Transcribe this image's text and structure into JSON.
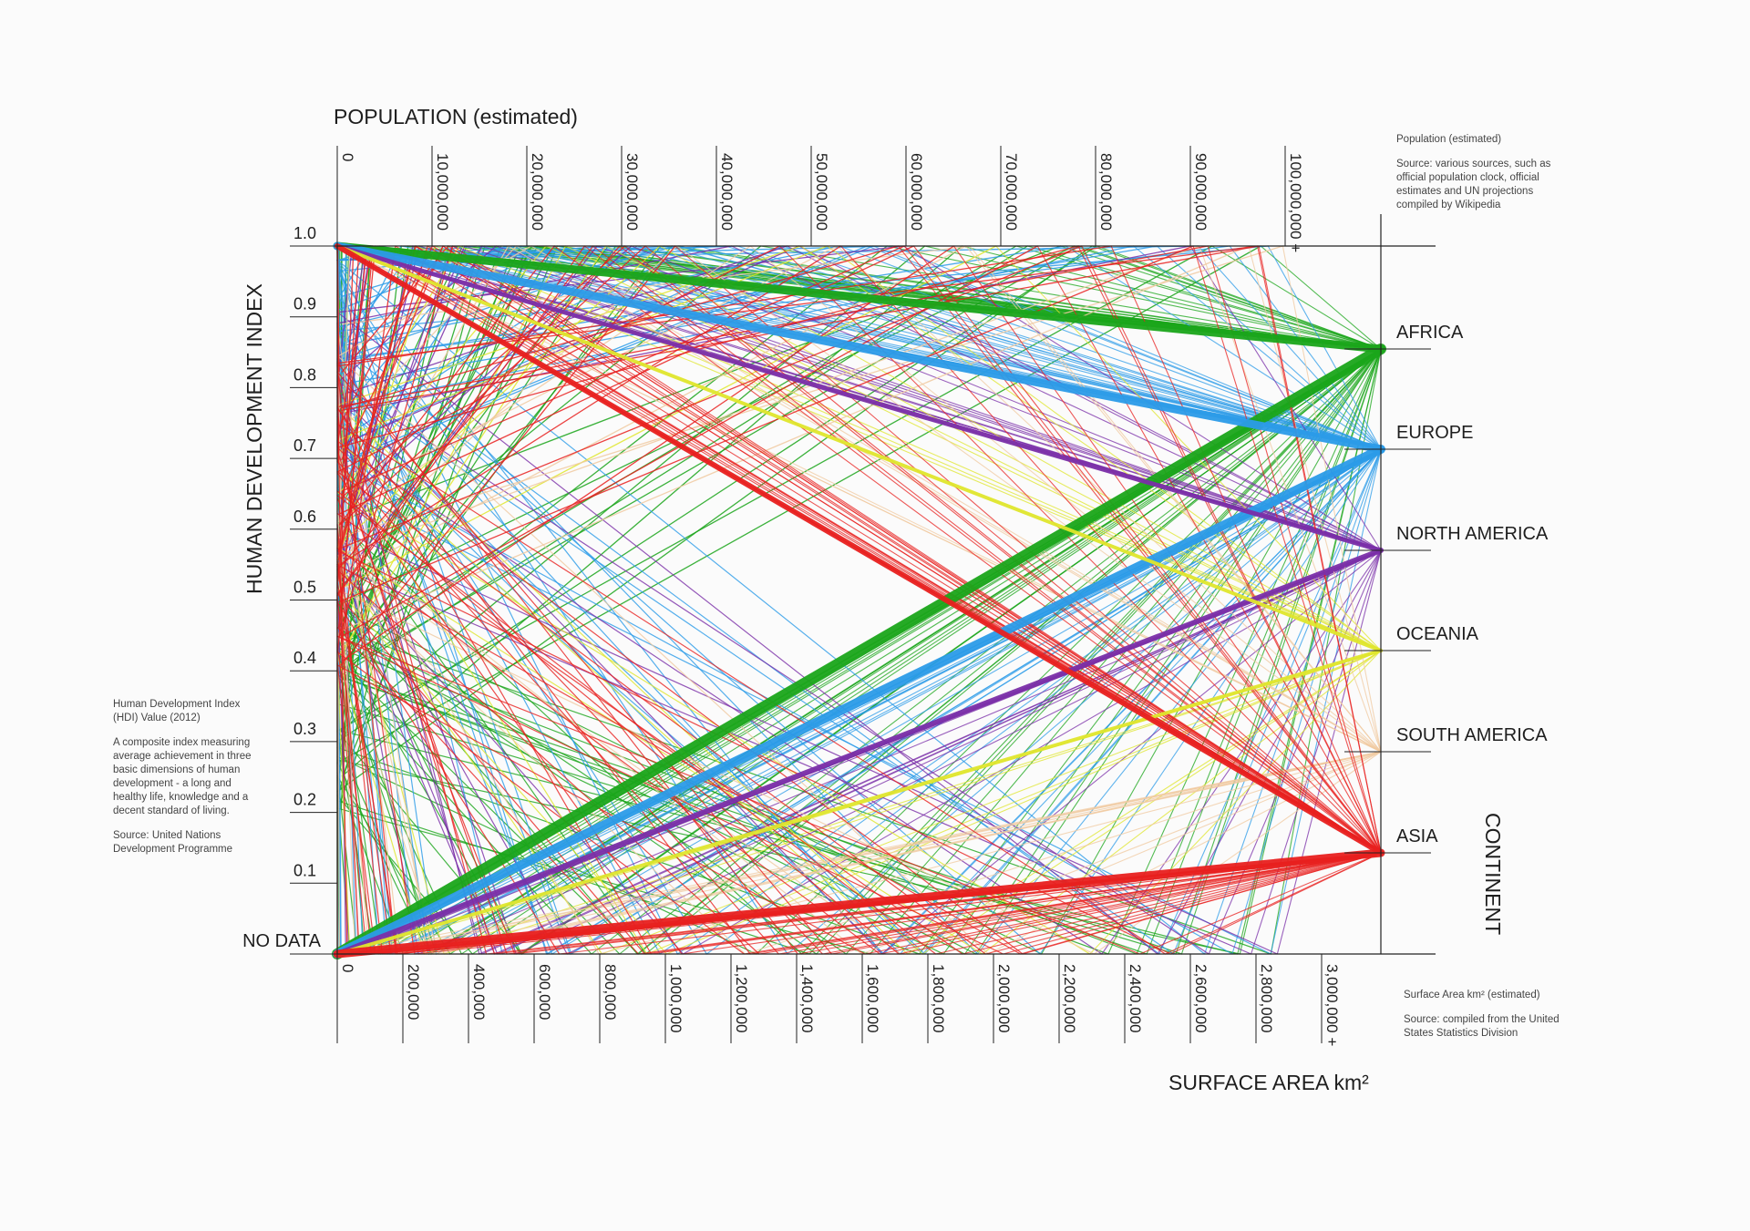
{
  "chart_data": {
    "type": "parallel-coordinates",
    "axes": [
      {
        "name": "POPULATION (estimated)",
        "scale": "linear",
        "ticks": [
          "0",
          "10,000,000",
          "20,000,000",
          "30,000,000",
          "40,000,000",
          "50,000,000",
          "60,000,000",
          "70,000,000",
          "80,000,000",
          "90,000,000",
          "100,000,000 +"
        ],
        "range": [
          0,
          100000000
        ]
      },
      {
        "name": "HUMAN DEVELOPMENT INDEX",
        "scale": "linear",
        "ticks": [
          "NO DATA",
          "0.1",
          "0.2",
          "0.3",
          "0.4",
          "0.5",
          "0.6",
          "0.7",
          "0.8",
          "0.9",
          "1.0"
        ],
        "range": [
          0,
          1
        ]
      },
      {
        "name": "SURFACE AREA km²",
        "scale": "linear",
        "ticks": [
          "0",
          "200,000",
          "400,000",
          "600,000",
          "800,000",
          "1,000,000",
          "1,200,000",
          "1,400,000",
          "1,600,000",
          "1,800,000",
          "2,000,000",
          "2,200,000",
          "2,400,000",
          "2,600,000",
          "2,800,000",
          "3,000,000 +"
        ],
        "range": [
          0,
          3000000
        ]
      },
      {
        "name": "CONTINENT",
        "scale": "categorical",
        "categories": [
          "AFRICA",
          "EUROPE",
          "NORTH AMERICA",
          "OCEANIA",
          "SOUTH AMERICA",
          "ASIA"
        ]
      }
    ],
    "series": [
      {
        "name": "AFRICA",
        "color": "#1aa51a"
      },
      {
        "name": "EUROPE",
        "color": "#2b9be8"
      },
      {
        "name": "NORTH AMERICA",
        "color": "#7a2ea8"
      },
      {
        "name": "OCEANIA",
        "color": "#dfe62c"
      },
      {
        "name": "SOUTH AMERICA",
        "color": "#f0c9a0"
      },
      {
        "name": "ASIA",
        "color": "#e8201f"
      }
    ],
    "grid": false,
    "legend": "none"
  },
  "notes": {
    "population": {
      "title": "Population (estimated)",
      "source": "Source: various sources, such as official population clock, official estimates and UN projections compiled by Wikipedia"
    },
    "hdi": {
      "title": "Human Development Index (HDI) Value (2012)",
      "description": "A composite index measuring average achievement in three basic dimensions of human development - a long and healthy life, knowledge and a decent standard of living.",
      "source": "Source: United Nations Development Programme"
    },
    "surface": {
      "title": "Surface Area km² (estimated)",
      "source": "Source: compiled from the United States Statistics Division"
    }
  }
}
